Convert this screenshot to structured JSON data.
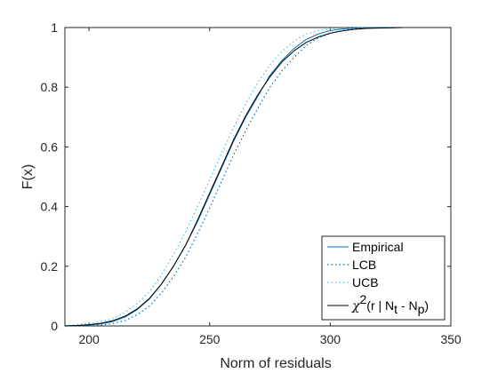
{
  "chart_data": {
    "type": "line",
    "title": "",
    "xlabel": "Norm of residuals",
    "ylabel": "F(x)",
    "xlim": [
      190,
      350
    ],
    "ylim": [
      0,
      1
    ],
    "x_ticks": [
      200,
      250,
      300,
      350
    ],
    "y_ticks": [
      0,
      0.2,
      0.4,
      0.6,
      0.8,
      1
    ],
    "x_tick_labels": [
      "200",
      "250",
      "300",
      "350"
    ],
    "y_tick_labels": [
      "0",
      "0.2",
      "0.4",
      "0.6",
      "0.8",
      "1"
    ],
    "grid": false,
    "legend_position": "bottom-right",
    "series": [
      {
        "name": "Empirical",
        "style": "solid",
        "color": "#0072BD",
        "x": [
          190,
          200,
          205,
          210,
          215,
          220,
          225,
          230,
          235,
          240,
          245,
          250,
          255,
          260,
          265,
          270,
          275,
          280,
          285,
          290,
          295,
          300,
          305,
          310,
          315,
          320,
          327
        ],
        "y": [
          0,
          0.003,
          0.007,
          0.015,
          0.03,
          0.055,
          0.09,
          0.14,
          0.2,
          0.27,
          0.35,
          0.44,
          0.53,
          0.62,
          0.7,
          0.77,
          0.84,
          0.89,
          0.93,
          0.96,
          0.978,
          0.99,
          0.995,
          0.998,
          0.999,
          1,
          1
        ]
      },
      {
        "name": "LCB",
        "style": "dotted",
        "color": "#0072BD",
        "x": [
          190,
          200,
          205,
          210,
          215,
          220,
          225,
          230,
          235,
          240,
          245,
          250,
          255,
          260,
          265,
          270,
          275,
          280,
          285,
          290,
          295,
          300,
          305,
          310,
          315,
          320,
          327
        ],
        "y": [
          0,
          0.001,
          0.003,
          0.008,
          0.018,
          0.038,
          0.066,
          0.11,
          0.165,
          0.23,
          0.31,
          0.395,
          0.485,
          0.575,
          0.655,
          0.73,
          0.8,
          0.855,
          0.9,
          0.94,
          0.965,
          0.98,
          0.99,
          0.995,
          0.998,
          1,
          1
        ]
      },
      {
        "name": "UCB",
        "style": "dotted",
        "color": "#4DBEEE",
        "x": [
          190,
          200,
          205,
          210,
          215,
          220,
          225,
          230,
          235,
          240,
          245,
          250,
          255,
          260,
          265,
          270,
          275,
          280,
          285,
          290,
          295,
          300,
          305,
          310,
          315,
          320,
          327
        ],
        "y": [
          0,
          0.008,
          0.015,
          0.025,
          0.045,
          0.075,
          0.115,
          0.17,
          0.24,
          0.315,
          0.4,
          0.49,
          0.58,
          0.665,
          0.745,
          0.815,
          0.875,
          0.92,
          0.955,
          0.978,
          0.99,
          0.996,
          0.998,
          0.999,
          1,
          1,
          1
        ]
      },
      {
        "name": "χ²(r | N_t - N_p)",
        "style": "solid",
        "color": "#000000",
        "x": [
          190,
          195,
          200,
          205,
          210,
          215,
          220,
          225,
          230,
          235,
          240,
          245,
          250,
          255,
          260,
          265,
          270,
          275,
          280,
          285,
          290,
          295,
          300,
          305,
          310,
          315,
          320,
          325,
          330
        ],
        "y": [
          0.0005,
          0.0015,
          0.004,
          0.009,
          0.018,
          0.033,
          0.057,
          0.092,
          0.14,
          0.2,
          0.27,
          0.355,
          0.445,
          0.535,
          0.625,
          0.705,
          0.775,
          0.835,
          0.885,
          0.922,
          0.95,
          0.968,
          0.981,
          0.989,
          0.994,
          0.997,
          0.998,
          0.999,
          1
        ]
      }
    ],
    "legend": {
      "entries": [
        "Empirical",
        "LCB",
        "UCB"
      ],
      "chi_symbol": "χ",
      "chi_superscript": "2",
      "chi_text_1": "(r | N",
      "chi_sub_1": "t",
      "chi_text_2": " - N",
      "chi_sub_2": "p",
      "chi_text_3": ")"
    }
  }
}
